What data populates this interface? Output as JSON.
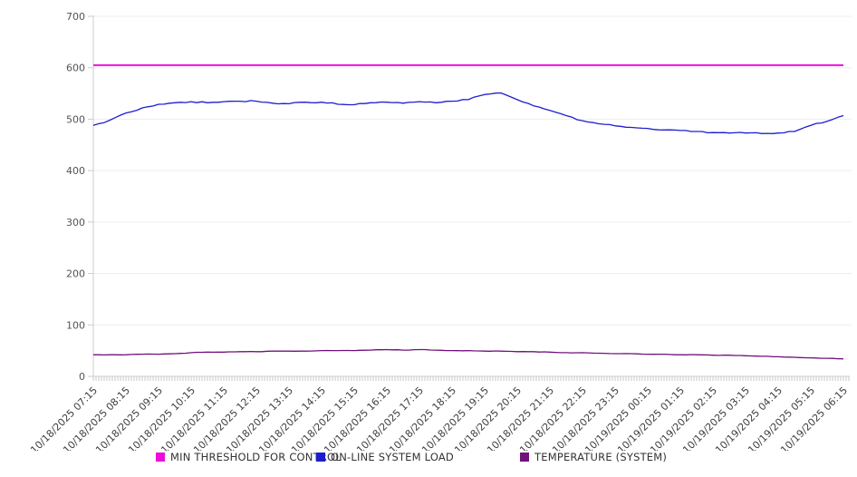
{
  "chart_data": {
    "type": "line",
    "title": "",
    "xlabel": "",
    "ylabel": "",
    "ylim": [
      0,
      700
    ],
    "yticks": [
      0,
      100,
      200,
      300,
      400,
      500,
      600,
      700
    ],
    "grid": "horizontal-only",
    "grid_color": "#ededed",
    "axis_color": "#cccccc",
    "legend_position": "bottom",
    "x_tick_label_rotation": -45,
    "x_minor_tick_interval_minutes": 5,
    "sample_interval_minutes": 30,
    "x_labels": [
      "10/18/2025 07:15",
      "10/18/2025 08:15",
      "10/18/2025 09:15",
      "10/18/2025 10:15",
      "10/18/2025 11:15",
      "10/18/2025 12:15",
      "10/18/2025 13:15",
      "10/18/2025 14:15",
      "10/18/2025 15:15",
      "10/18/2025 16:15",
      "10/18/2025 17:15",
      "10/18/2025 18:15",
      "10/18/2025 19:15",
      "10/18/2025 20:15",
      "10/18/2025 21:15",
      "10/18/2025 22:15",
      "10/18/2025 23:15",
      "10/19/2025 00:15",
      "10/19/2025 01:15",
      "10/19/2025 02:15",
      "10/19/2025 03:15",
      "10/19/2025 04:15",
      "10/19/2025 05:15",
      "10/19/2025 06:15"
    ],
    "series": [
      {
        "name": "MIN THRESHOLD FOR CONTROL",
        "color": "#ee0edb",
        "stroke_width": 2,
        "constant_value": 605
      },
      {
        "name": "ON-LINE SYSTEM LOAD",
        "color": "#1d1dd0",
        "stroke_width": 1.3,
        "values": [
          488,
          498,
          512,
          522,
          529,
          532,
          534,
          532,
          534,
          535,
          535,
          531,
          530,
          533,
          533,
          529,
          528,
          532,
          533,
          531,
          534,
          532,
          535,
          538,
          548,
          551,
          538,
          526,
          517,
          507,
          497,
          491,
          487,
          484,
          482,
          479,
          478,
          476,
          474,
          473,
          473,
          472,
          473,
          476,
          488,
          496,
          507
        ]
      },
      {
        "name": "TEMPERATURE (SYSTEM)",
        "color": "#70107c",
        "stroke_width": 1.3,
        "values": [
          42,
          42,
          42,
          43,
          43,
          44,
          46,
          47,
          47,
          48,
          48,
          49,
          49,
          49,
          50,
          50,
          50,
          51,
          52,
          51,
          52,
          51,
          50,
          50,
          49,
          49,
          48,
          48,
          47,
          46,
          46,
          45,
          44,
          44,
          43,
          43,
          42,
          42,
          41,
          41,
          40,
          39,
          38,
          37,
          36,
          35,
          34
        ]
      }
    ]
  }
}
